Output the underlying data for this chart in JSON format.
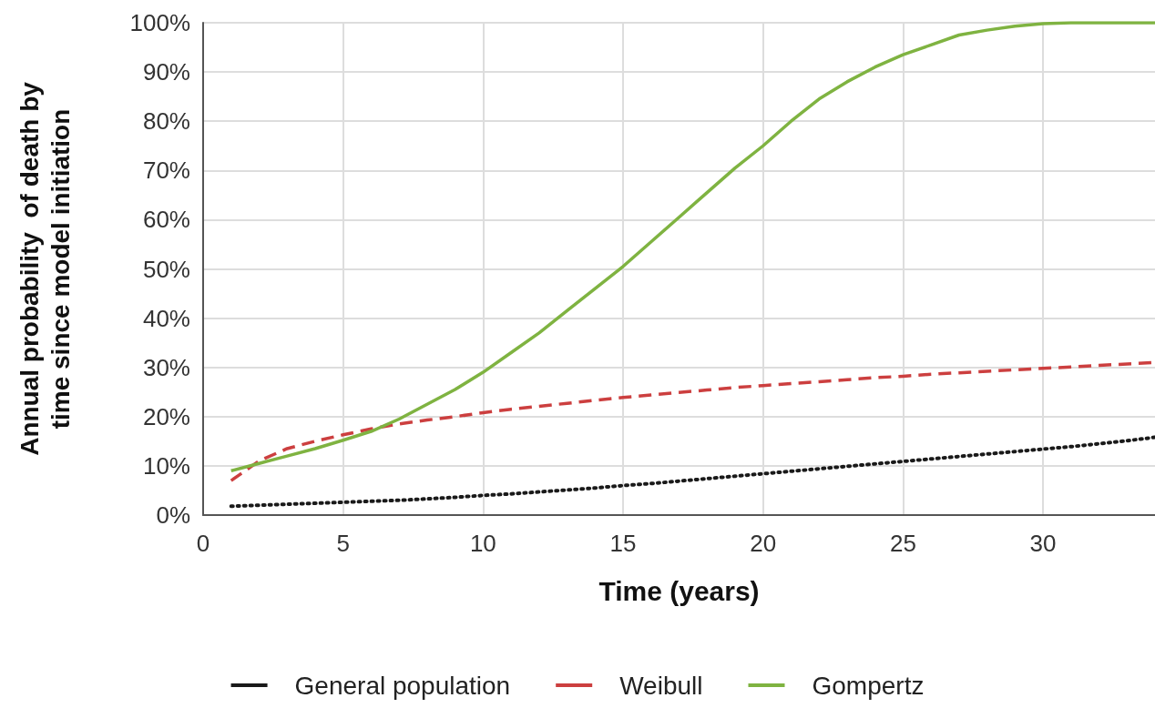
{
  "chart_data": {
    "type": "line",
    "xlabel": "Time (years)",
    "ylabel": "Annual probability  of death by\ntime since model initiation",
    "x": [
      1,
      2,
      3,
      4,
      5,
      6,
      7,
      8,
      9,
      10,
      11,
      12,
      13,
      14,
      15,
      16,
      17,
      18,
      19,
      20,
      21,
      22,
      23,
      24,
      25,
      26,
      27,
      28,
      29,
      30,
      31,
      32,
      33,
      34
    ],
    "series": [
      {
        "name": "General population",
        "color": "#1a1a1a",
        "line_style": "dotted",
        "values": [
          1.8,
          2,
          2.2,
          2.4,
          2.6,
          2.8,
          3,
          3.3,
          3.6,
          4,
          4.3,
          4.7,
          5.1,
          5.5,
          6,
          6.4,
          6.9,
          7.4,
          7.9,
          8.4,
          8.9,
          9.4,
          9.9,
          10.4,
          10.9,
          11.4,
          11.9,
          12.4,
          12.9,
          13.4,
          13.9,
          14.5,
          15.1,
          15.8
        ]
      },
      {
        "name": "Weibull",
        "color": "#cc3f3f",
        "line_style": "dashed",
        "values": [
          7,
          11,
          13.5,
          15,
          16.3,
          17.5,
          18.5,
          19.3,
          20,
          20.8,
          21.5,
          22.1,
          22.7,
          23.3,
          23.9,
          24.4,
          24.9,
          25.4,
          25.9,
          26.3,
          26.7,
          27.1,
          27.5,
          27.9,
          28.2,
          28.6,
          28.9,
          29.2,
          29.5,
          29.8,
          30.1,
          30.4,
          30.7,
          31
        ]
      },
      {
        "name": "Gompertz",
        "color": "#7fb341",
        "line_style": "solid",
        "values": [
          9,
          10.5,
          12,
          13.5,
          15.2,
          17,
          19.5,
          22.5,
          25.5,
          29,
          33,
          37,
          41.5,
          46,
          50.5,
          55.5,
          60.5,
          65.5,
          70.5,
          75,
          80,
          84.5,
          88,
          91,
          93.5,
          95.5,
          97.5,
          98.5,
          99.3,
          99.8,
          100,
          100,
          100,
          100
        ]
      }
    ],
    "xlim": [
      0,
      34
    ],
    "xticks": [
      0,
      5,
      10,
      15,
      20,
      25,
      30
    ],
    "ylim": [
      0,
      100
    ],
    "yticks": [
      {
        "value": 0,
        "label": "0%"
      },
      {
        "value": 10,
        "label": "10%"
      },
      {
        "value": 20,
        "label": "20%"
      },
      {
        "value": 30,
        "label": "30%"
      },
      {
        "value": 40,
        "label": "40%"
      },
      {
        "value": 50,
        "label": "50%"
      },
      {
        "value": 60,
        "label": "60%"
      },
      {
        "value": 70,
        "label": "70%"
      },
      {
        "value": 80,
        "label": "80%"
      },
      {
        "value": 90,
        "label": "90%"
      },
      {
        "value": 100,
        "label": "100%"
      }
    ],
    "grid": true,
    "legend": "bottom",
    "marker": "none"
  }
}
